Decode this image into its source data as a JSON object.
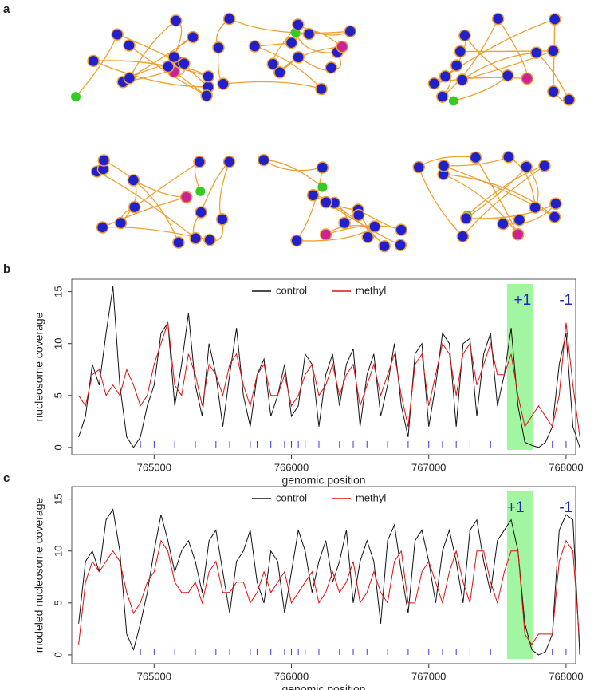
{
  "panel_labels": [
    "a",
    "b",
    "c"
  ],
  "chart_data": [
    {
      "type": "line",
      "xlabel": "genomic position",
      "ylabel": "nucleosome coverage",
      "xlim": [
        764400,
        768070
      ],
      "ylim": [
        -0.7,
        16.2
      ],
      "xticks": [
        765000,
        766000,
        767000,
        768000
      ],
      "yticks": [
        0,
        5,
        10,
        15
      ],
      "legend": "top",
      "highlight": {
        "range": [
          767570,
          767760
        ],
        "color": "#98f598"
      },
      "annotations": [
        {
          "text": "+1",
          "x": 767620
        },
        {
          "text": "-1",
          "x": 767950
        }
      ],
      "sites": {
        "color": "#3333ee",
        "x": [
          764900,
          765000,
          765150,
          765300,
          765450,
          765550,
          765700,
          765750,
          765850,
          765950,
          766000,
          766050,
          766100,
          766200,
          766350,
          766450,
          766550,
          766700,
          766850,
          767000,
          767100,
          767200,
          767300,
          767450,
          767900,
          768000
        ]
      },
      "x": [
        764450,
        764500,
        764550,
        764600,
        764650,
        764700,
        764750,
        764800,
        764850,
        764900,
        764950,
        765000,
        765050,
        765100,
        765150,
        765200,
        765250,
        765300,
        765350,
        765400,
        765450,
        765500,
        765550,
        765600,
        765650,
        765700,
        765750,
        765800,
        765850,
        765900,
        765950,
        766000,
        766050,
        766100,
        766150,
        766200,
        766250,
        766300,
        766350,
        766400,
        766450,
        766500,
        766550,
        766600,
        766650,
        766700,
        766750,
        766800,
        766850,
        766900,
        766950,
        767000,
        767050,
        767100,
        767150,
        767200,
        767250,
        767300,
        767350,
        767400,
        767450,
        767500,
        767550,
        767600,
        767650,
        767700,
        767750,
        767800,
        767850,
        767900,
        767950,
        768000,
        768050,
        768100
      ],
      "series": [
        {
          "name": "control",
          "color": "#111111",
          "values": [
            1,
            3,
            8,
            6,
            11,
            15.5,
            6,
            1,
            0,
            1,
            4,
            6,
            11,
            12,
            4,
            8,
            12.9,
            6,
            3,
            10,
            7,
            2,
            7,
            11.5,
            5,
            2,
            7,
            8.5,
            3,
            5,
            8,
            3,
            4,
            9,
            8,
            2,
            7,
            9,
            4,
            8,
            9.5,
            2,
            7,
            9,
            3,
            6,
            10,
            4,
            1,
            9,
            10,
            2,
            6,
            11,
            10,
            2,
            10,
            10.5,
            3,
            9,
            11,
            4,
            7,
            11.5,
            4,
            0.5,
            0.2,
            0,
            0.5,
            2,
            8,
            11,
            2,
            0
          ]
        },
        {
          "name": "methyl",
          "color": "#e01010",
          "values": [
            5,
            4,
            7,
            7.5,
            5,
            6,
            5,
            7.5,
            6,
            4,
            5,
            8,
            10,
            12,
            6,
            5,
            9,
            7,
            4,
            8,
            7,
            5,
            8,
            9,
            6,
            4,
            7,
            8,
            5,
            5,
            7,
            4,
            5,
            7,
            8,
            5,
            6,
            8,
            5,
            7,
            8,
            4,
            6,
            8,
            5,
            7,
            9,
            5,
            2,
            8,
            9,
            4,
            7,
            10,
            9,
            5,
            9,
            10,
            6,
            8,
            10,
            7,
            7,
            9,
            5,
            2,
            3,
            4,
            3,
            2,
            5,
            12,
            6,
            1
          ]
        }
      ]
    },
    {
      "type": "line",
      "xlabel": "genomic position",
      "ylabel": "modeled nucleosome coverage",
      "xlim": [
        764400,
        768070
      ],
      "ylim": [
        -0.85,
        16.2
      ],
      "xticks": [
        765000,
        766000,
        767000,
        768000
      ],
      "yticks": [
        0,
        5,
        10,
        15
      ],
      "legend": "top",
      "highlight": {
        "range": [
          767570,
          767760
        ],
        "color": "#98f598"
      },
      "annotations": [
        {
          "text": "+1",
          "x": 767570
        },
        {
          "text": "-1",
          "x": 767950
        }
      ],
      "sites": {
        "color": "#3333ee",
        "x": [
          764900,
          765000,
          765150,
          765300,
          765450,
          765550,
          765700,
          765750,
          765850,
          765950,
          766000,
          766050,
          766100,
          766200,
          766350,
          766450,
          766550,
          766700,
          766850,
          767000,
          767100,
          767200,
          767300,
          767450,
          767900,
          768000
        ]
      },
      "x": [
        764450,
        764500,
        764550,
        764600,
        764650,
        764700,
        764750,
        764800,
        764850,
        764900,
        764950,
        765000,
        765050,
        765100,
        765150,
        765200,
        765250,
        765300,
        765350,
        765400,
        765450,
        765500,
        765550,
        765600,
        765650,
        765700,
        765750,
        765800,
        765850,
        765900,
        765950,
        766000,
        766050,
        766100,
        766150,
        766200,
        766250,
        766300,
        766350,
        766400,
        766450,
        766500,
        766550,
        766600,
        766650,
        766700,
        766750,
        766800,
        766850,
        766900,
        766950,
        767000,
        767050,
        767100,
        767150,
        767200,
        767250,
        767300,
        767350,
        767400,
        767450,
        767500,
        767550,
        767600,
        767650,
        767700,
        767750,
        767800,
        767850,
        767900,
        767950,
        768000,
        768050,
        768100
      ],
      "series": [
        {
          "name": "control",
          "color": "#111111",
          "values": [
            3,
            9,
            10,
            8,
            13,
            14,
            10,
            2,
            0.5,
            3,
            6,
            10,
            13.5,
            11,
            8,
            10,
            11,
            9,
            6,
            11,
            12,
            8,
            4,
            9,
            10,
            12,
            7,
            5,
            10,
            9,
            4,
            8,
            12,
            10,
            6,
            9,
            11,
            7,
            9,
            12,
            5,
            9,
            11,
            9,
            3,
            11,
            12.5,
            8,
            4,
            11,
            12,
            9,
            5,
            10,
            12,
            9,
            5,
            12,
            13,
            9,
            6,
            11,
            12,
            13,
            10,
            3,
            0.5,
            0,
            0.3,
            2,
            12,
            13.5,
            13,
            0
          ]
        },
        {
          "name": "methyl",
          "color": "#e01010",
          "values": [
            1,
            7,
            9,
            8,
            9,
            10,
            9,
            6,
            4,
            5,
            7,
            8,
            11,
            10,
            7,
            6,
            6,
            7,
            5,
            8,
            9,
            6,
            6,
            7,
            7,
            5,
            6,
            8,
            6,
            7,
            8,
            5,
            6,
            7,
            8,
            5,
            6,
            8,
            6,
            7,
            9,
            5,
            6,
            8,
            6,
            5,
            9,
            10,
            5,
            5,
            8,
            9,
            7,
            5,
            8,
            10,
            7,
            5,
            10,
            10,
            7,
            5,
            8,
            10,
            10,
            2,
            1,
            2,
            2,
            2,
            9,
            11,
            10,
            1
          ]
        }
      ]
    }
  ]
}
